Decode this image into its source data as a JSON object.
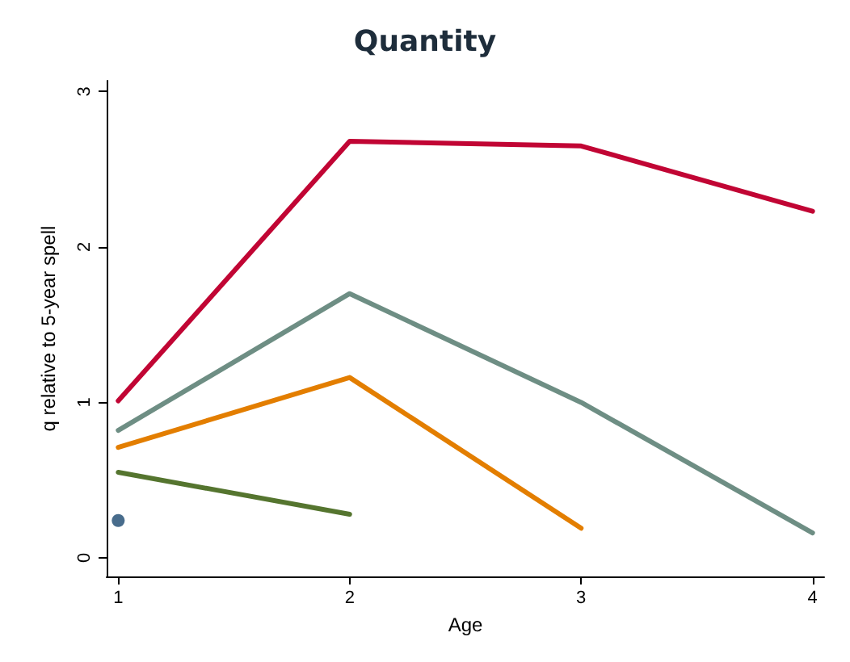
{
  "chart_data": {
    "type": "line",
    "title": "Quantity",
    "xlabel": "Age",
    "ylabel": "q relative to 5-year spell",
    "xlim": [
      0.95,
      4.05
    ],
    "xticks": [
      1,
      2,
      3,
      4
    ],
    "ylim": [
      -0.12,
      3.07
    ],
    "yticks": [
      0,
      1,
      2,
      3
    ],
    "grid": false,
    "marker": "none",
    "line_style": "solid",
    "series": [
      {
        "color": "#c10534",
        "x": [
          1,
          2,
          3,
          4
        ],
        "values": [
          1.01,
          2.68,
          2.65,
          2.23
        ]
      },
      {
        "color": "#6e8e84",
        "x": [
          1,
          2,
          3,
          4
        ],
        "values": [
          0.82,
          1.7,
          1.0,
          0.16
        ]
      },
      {
        "color": "#e37e00",
        "x": [
          1,
          2,
          3
        ],
        "values": [
          0.71,
          1.16,
          0.19
        ]
      },
      {
        "color": "#55752f",
        "x": [
          1,
          2
        ],
        "values": [
          0.55,
          0.28
        ]
      },
      {
        "type": "scatter",
        "marker": "circle",
        "color": "#1a476f",
        "x": [
          1
        ],
        "values": [
          0.24
        ]
      }
    ]
  }
}
